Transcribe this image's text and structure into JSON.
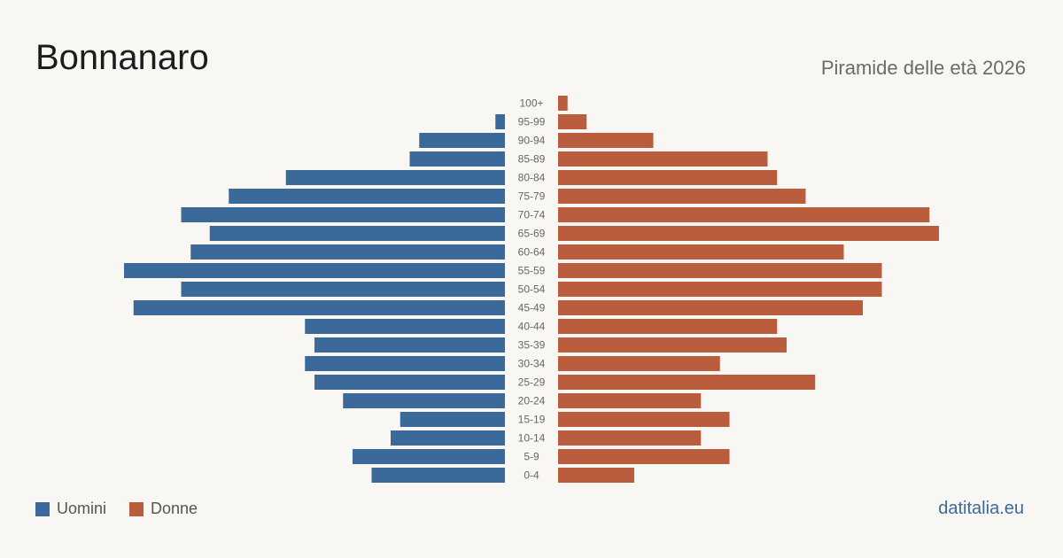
{
  "header": {
    "title": "Bonnanaro",
    "subtitle": "Piramide delle età 2026"
  },
  "legend": {
    "male_label": "Uomini",
    "female_label": "Donne"
  },
  "footer": {
    "source": "datitalia.eu"
  },
  "colors": {
    "male": "#3b6a9a",
    "female": "#b95d3d",
    "label": "#666666",
    "background": "#f9f7f3"
  },
  "chart_data": {
    "type": "bar",
    "orientation": "horizontal-pyramid",
    "title": "Bonnanaro",
    "subtitle": "Piramide delle età 2026",
    "categories": [
      "100+",
      "95-99",
      "90-94",
      "85-89",
      "80-84",
      "75-79",
      "70-74",
      "65-69",
      "60-64",
      "55-59",
      "50-54",
      "45-49",
      "40-44",
      "35-39",
      "30-34",
      "25-29",
      "20-24",
      "15-19",
      "10-14",
      "5-9",
      "0-4"
    ],
    "series": [
      {
        "name": "Uomini",
        "values": [
          0,
          1,
          9,
          10,
          23,
          29,
          34,
          31,
          33,
          40,
          34,
          39,
          21,
          20,
          21,
          20,
          17,
          11,
          12,
          16,
          14
        ]
      },
      {
        "name": "Donne",
        "values": [
          1,
          3,
          10,
          22,
          23,
          26,
          39,
          40,
          30,
          34,
          34,
          32,
          23,
          24,
          17,
          27,
          15,
          18,
          15,
          18,
          8
        ]
      }
    ],
    "legend_position": "bottom-left",
    "grid": false
  }
}
